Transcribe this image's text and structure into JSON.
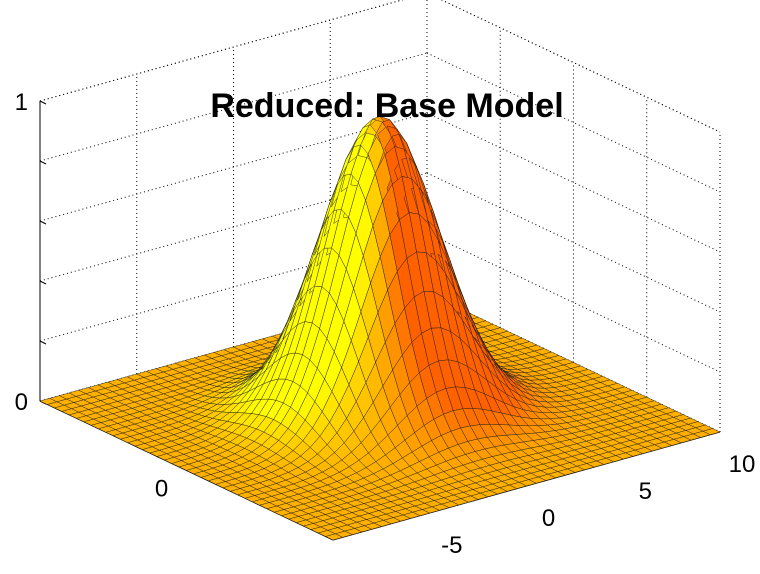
{
  "chart_data": {
    "type": "surface",
    "title": "Reduced: Base Model",
    "xlabel": "",
    "ylabel": "",
    "zlabel": "",
    "function": "gaussian peak",
    "peak_z": 1,
    "sigma": 2.5,
    "x_range": [
      -10,
      10
    ],
    "y_range": [
      -10,
      10
    ],
    "z_range": [
      0,
      1
    ],
    "grid_lines": 41,
    "grid": true,
    "colormap": "autumn",
    "colormap_low": "#ff6000",
    "colormap_high": "#ffff00",
    "x_ticks": [
      {
        "value": -5,
        "label": "-5"
      },
      {
        "value": 0,
        "label": "0"
      },
      {
        "value": 5,
        "label": "5"
      },
      {
        "value": 10,
        "label": "10"
      }
    ],
    "y_ticks": [
      {
        "value": 0,
        "label": "0"
      }
    ],
    "z_ticks": [
      {
        "value": 0,
        "label": "0"
      },
      {
        "value": 1,
        "label": "1"
      }
    ]
  }
}
